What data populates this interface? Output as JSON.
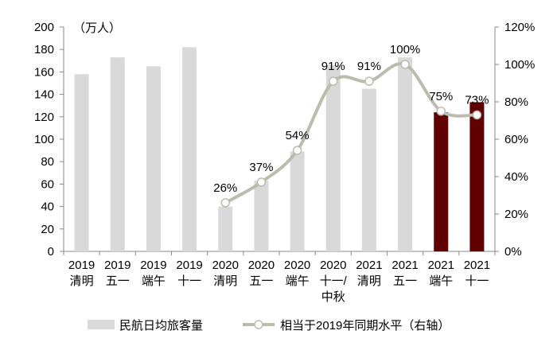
{
  "chart_data": {
    "type": "bar+line",
    "unit_label": "（万人）",
    "categories": [
      [
        "2019",
        "清明"
      ],
      [
        "2019",
        "五一"
      ],
      [
        "2019",
        "端午"
      ],
      [
        "2019",
        "十一"
      ],
      [
        "2020",
        "清明"
      ],
      [
        "2020",
        "五一"
      ],
      [
        "2020",
        "端午"
      ],
      [
        "2020",
        "十一/",
        "中秋"
      ],
      [
        "2021",
        "清明"
      ],
      [
        "2021",
        "五一"
      ],
      [
        "2021",
        "端午"
      ],
      [
        "2021",
        "十一"
      ]
    ],
    "series": [
      {
        "name": "民航日均旅客量",
        "type": "bar",
        "axis": "left",
        "values": [
          158,
          173,
          165,
          182,
          40,
          63,
          89,
          166,
          145,
          173,
          124,
          133
        ],
        "colors": [
          "#d9d9d9",
          "#d9d9d9",
          "#d9d9d9",
          "#d9d9d9",
          "#d9d9d9",
          "#d9d9d9",
          "#d9d9d9",
          "#d9d9d9",
          "#d9d9d9",
          "#d9d9d9",
          "#600000",
          "#600000"
        ]
      },
      {
        "name": "相当于2019年同期水平（右轴）",
        "type": "line",
        "axis": "right",
        "color": "#bcbcae",
        "values": [
          null,
          null,
          null,
          null,
          26,
          37,
          54,
          91,
          91,
          100,
          75,
          73
        ],
        "labels": [
          "",
          "",
          "",
          "",
          "26%",
          "37%",
          "54%",
          "91%",
          "91%",
          "100%",
          "75%",
          "73%"
        ]
      }
    ],
    "ylim_left": [
      0,
      200
    ],
    "yticks_left": [
      "0",
      "20",
      "40",
      "60",
      "80",
      "100",
      "120",
      "140",
      "160",
      "180",
      "200"
    ],
    "ylim_right": [
      0,
      120
    ],
    "yticks_right": [
      "0%",
      "20%",
      "40%",
      "60%",
      "80%",
      "100%",
      "120%"
    ],
    "legend_position": "bottom",
    "grid": false
  }
}
